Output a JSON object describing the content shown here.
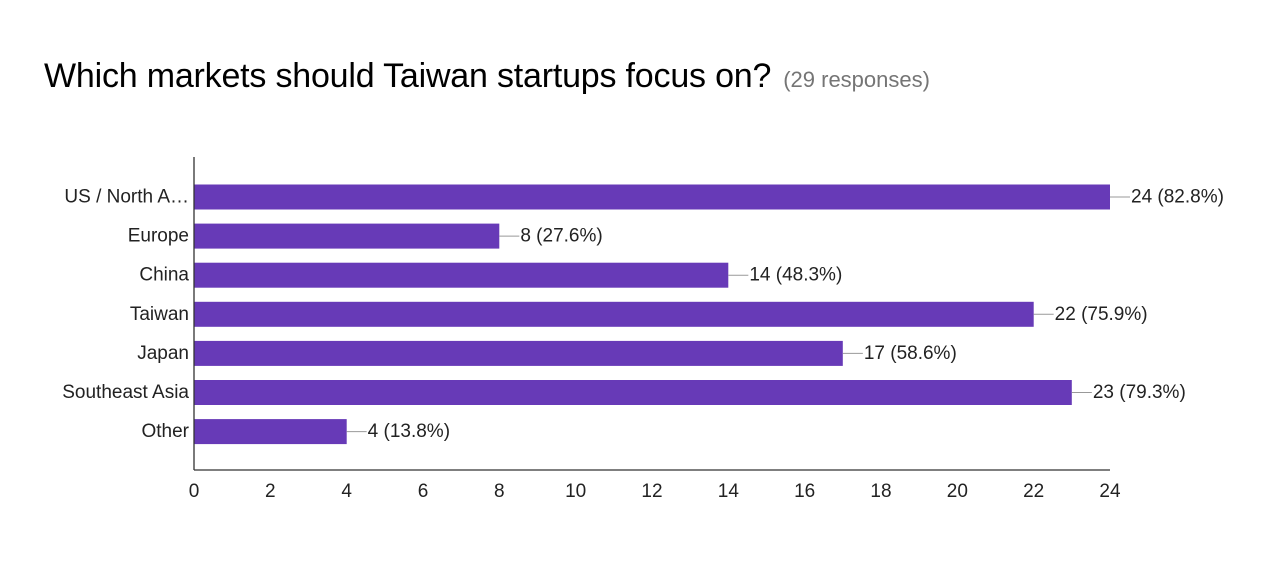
{
  "question": {
    "title": "Which markets should Taiwan startups focus on?",
    "responses": "(29 responses)"
  },
  "colors": {
    "bar": "#673ab7",
    "axis": "#333333",
    "text": "#222222"
  },
  "chart_data": {
    "type": "bar",
    "orientation": "horizontal",
    "categories": [
      "US / North A…",
      "Europe",
      "China",
      "Taiwan",
      "Japan",
      "Southeast Asia",
      "Other"
    ],
    "values": [
      24,
      8,
      14,
      22,
      17,
      23,
      4
    ],
    "data_labels": [
      "24 (82.8%)",
      "8 (27.6%)",
      "14 (48.3%)",
      "22 (75.9%)",
      "17 (58.6%)",
      "23 (79.3%)",
      "4 (13.8%)"
    ],
    "xlim": [
      0,
      24
    ],
    "xticks": [
      0,
      2,
      4,
      6,
      8,
      10,
      12,
      14,
      16,
      18,
      20,
      22,
      24
    ],
    "grid": false
  }
}
